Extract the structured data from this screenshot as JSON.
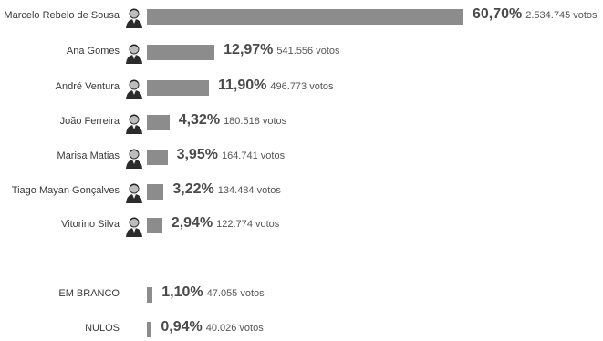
{
  "chart_data": {
    "type": "bar",
    "orientation": "horizontal",
    "categories": [
      "Marcelo Rebelo de Sousa",
      "Ana Gomes",
      "André Ventura",
      "João Ferreira",
      "Marisa Matias",
      "Tiago Mayan Gonçalves",
      "Vitorino Silva",
      "EM BRANCO",
      "NULOS"
    ],
    "values": [
      60.7,
      12.97,
      11.9,
      4.32,
      3.95,
      3.22,
      2.94,
      1.1,
      0.94
    ],
    "series": [
      {
        "values": [
          60.7,
          12.97,
          11.9,
          4.32,
          3.95,
          3.22,
          2.94,
          1.1,
          0.94
        ]
      }
    ],
    "rows": [
      {
        "name": "Marcelo Rebelo de Sousa",
        "pct": "60,70%",
        "votes": "2.534.745 votos",
        "value": 60.7,
        "avatar": "candidate-portrait"
      },
      {
        "name": "Ana Gomes",
        "pct": "12,97%",
        "votes": "541.556 votos",
        "value": 12.97,
        "avatar": "candidate-portrait"
      },
      {
        "name": "André Ventura",
        "pct": "11,90%",
        "votes": "496.773 votos",
        "value": 11.9,
        "avatar": "candidate-portrait"
      },
      {
        "name": "João Ferreira",
        "pct": "4,32%",
        "votes": "180.518 votos",
        "value": 4.32,
        "avatar": "candidate-portrait"
      },
      {
        "name": "Marisa Matias",
        "pct": "3,95%",
        "votes": "164.741 votos",
        "value": 3.95,
        "avatar": "candidate-portrait"
      },
      {
        "name": "Tiago Mayan Gonçalves",
        "pct": "3,22%",
        "votes": "134.484 votos",
        "value": 3.22,
        "avatar": "candidate-portrait"
      },
      {
        "name": "Vitorino Silva",
        "pct": "2,94%",
        "votes": "122.774 votos",
        "value": 2.94,
        "avatar": "candidate-portrait"
      },
      {
        "name": "EM BRANCO",
        "pct": "1,10%",
        "votes": "47.055 votos",
        "value": 1.1,
        "avatar": null
      },
      {
        "name": "NULOS",
        "pct": "0,94%",
        "votes": "40.026 votos",
        "value": 0.94,
        "avatar": null
      }
    ],
    "xlim": [
      0,
      60.7
    ],
    "grid": false,
    "legend": "none",
    "colors": {
      "bar": "#8c8c8c",
      "text": "#3a3a3a"
    }
  }
}
